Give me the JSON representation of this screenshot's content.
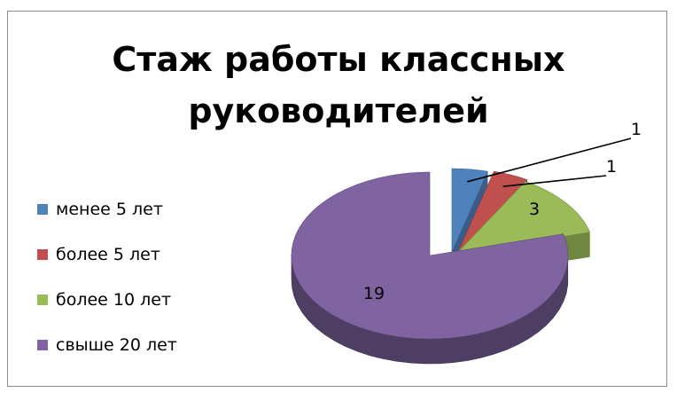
{
  "chart_data": {
    "type": "pie",
    "title": "Стаж работы классных руководителей",
    "title_lines": [
      "Стаж работы классных",
      "руководителей"
    ],
    "legend_position": "left",
    "slices": [
      {
        "label": "менее 5 лет",
        "value": 1,
        "color": "#4F81BD"
      },
      {
        "label": "более 5 лет",
        "value": 1,
        "color": "#C0504D"
      },
      {
        "label": "более 10 лет",
        "value": 3,
        "color": "#9BBB59"
      },
      {
        "label": "свыше 20 лет",
        "value": 19,
        "color": "#8064A2"
      }
    ]
  }
}
